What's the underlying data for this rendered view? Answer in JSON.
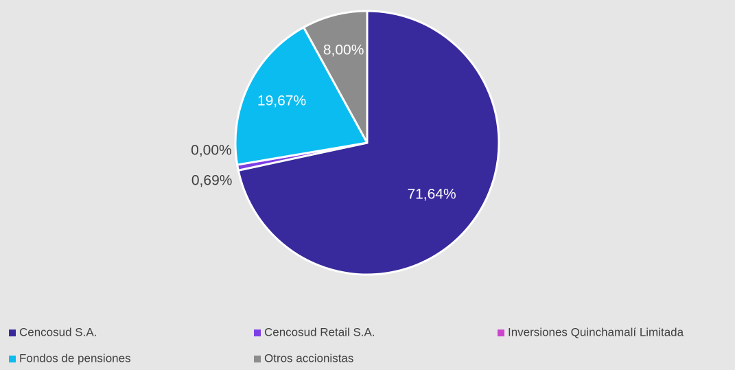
{
  "chart_data": {
    "type": "pie",
    "categories": [
      "Cencosud S.A.",
      "Cencosud Retail S.A.",
      "Inversiones Quinchamalí Limitada",
      "Fondos de pensiones",
      "Otros accionistas"
    ],
    "values": [
      71.64,
      0.69,
      0.0,
      19.67,
      8.0
    ],
    "value_labels": [
      "71,64%",
      "0,69%",
      "0,00%",
      "19,67%",
      "8,00%"
    ],
    "colors": [
      "#382a9c",
      "#7b3fe4",
      "#cc44cc",
      "#0bbcf0",
      "#8c8c8c"
    ]
  }
}
